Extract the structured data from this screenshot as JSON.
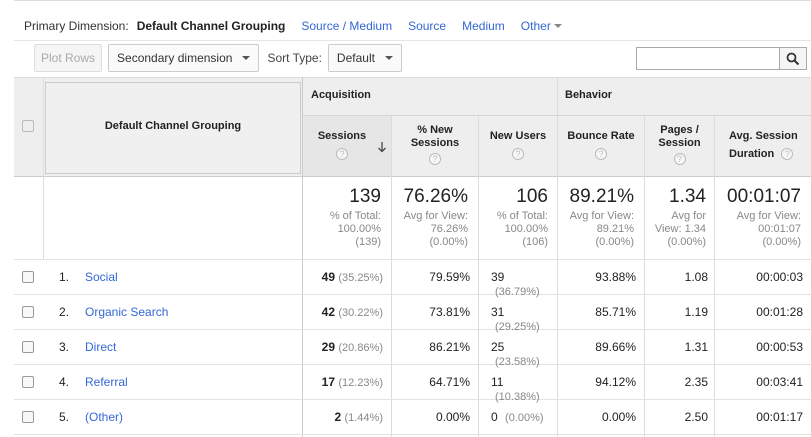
{
  "primary_dimension": {
    "label": "Primary Dimension:",
    "selected": "Default Channel Grouping",
    "options": [
      "Source / Medium",
      "Source",
      "Medium"
    ],
    "other": "Other"
  },
  "toolbar": {
    "plot_rows": "Plot Rows",
    "secondary_dimension": "Secondary dimension",
    "sort_type_label": "Sort Type:",
    "sort_type_value": "Default",
    "search_value": ""
  },
  "table": {
    "dimension_header": "Default Channel Grouping",
    "groups": {
      "acquisition": "Acquisition",
      "behavior": "Behavior"
    },
    "columns": {
      "sessions": "Sessions",
      "new_sessions_1": "% New",
      "new_sessions_2": "Sessions",
      "new_users": "New Users",
      "bounce_rate": "Bounce Rate",
      "pages_1": "Pages /",
      "pages_2": "Session",
      "duration_1": "Avg. Session",
      "duration_2": "Duration",
      "help": "?"
    },
    "totals": {
      "sessions": {
        "value": "139",
        "l1": "% of Total:",
        "l2": "100.00%",
        "l3": "(139)"
      },
      "new_sessions": {
        "value": "76.26%",
        "l1": "Avg for View:",
        "l2": "76.26%",
        "l3": "(0.00%)"
      },
      "new_users": {
        "value": "106",
        "l1": "% of Total:",
        "l2": "100.00%",
        "l3": "(106)"
      },
      "bounce_rate": {
        "value": "89.21%",
        "l1": "Avg for View:",
        "l2": "89.21%",
        "l3": "(0.00%)"
      },
      "pages": {
        "value": "1.34",
        "l1": "Avg for",
        "l2": "View: 1.34",
        "l3": "(0.00%)"
      },
      "duration": {
        "value": "00:01:07",
        "l1": "Avg for View:",
        "l2": "00:01:07",
        "l3": "(0.00%)"
      }
    },
    "rows": [
      {
        "num": "1.",
        "name": "Social",
        "sessions": "49",
        "sessions_pct": "(35.25%)",
        "new_sessions": "79.59%",
        "new_users": "39",
        "new_users_pct": "(36.79%)",
        "bounce": "93.88%",
        "pages": "1.08",
        "duration": "00:00:03"
      },
      {
        "num": "2.",
        "name": "Organic Search",
        "sessions": "42",
        "sessions_pct": "(30.22%)",
        "new_sessions": "73.81%",
        "new_users": "31",
        "new_users_pct": "(29.25%)",
        "bounce": "85.71%",
        "pages": "1.19",
        "duration": "00:01:28"
      },
      {
        "num": "3.",
        "name": "Direct",
        "sessions": "29",
        "sessions_pct": "(20.86%)",
        "new_sessions": "86.21%",
        "new_users": "25",
        "new_users_pct": "(23.58%)",
        "bounce": "89.66%",
        "pages": "1.31",
        "duration": "00:00:53"
      },
      {
        "num": "4.",
        "name": "Referral",
        "sessions": "17",
        "sessions_pct": "(12.23%)",
        "new_sessions": "64.71%",
        "new_users": "11",
        "new_users_pct": "(10.38%)",
        "bounce": "94.12%",
        "pages": "2.35",
        "duration": "00:03:41"
      },
      {
        "num": "5.",
        "name": "(Other)",
        "sessions": "2",
        "sessions_pct": "(1.44%)",
        "new_sessions": "0.00%",
        "new_users": "0",
        "new_users_pct": "(0.00%)",
        "bounce": "0.00%",
        "pages": "2.50",
        "duration": "00:01:17"
      }
    ]
  }
}
